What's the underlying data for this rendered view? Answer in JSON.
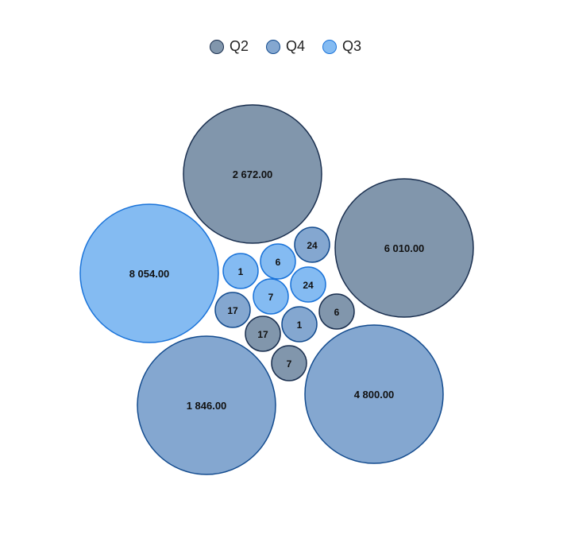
{
  "chart_data": {
    "type": "bubble",
    "title": "",
    "legend_position": "top-center",
    "series": [
      {
        "name": "Q2",
        "color": "#8196ac",
        "stroke": "#1a2f4f",
        "values": [
          2672.0,
          6010.0,
          6,
          7,
          17
        ]
      },
      {
        "name": "Q4",
        "color": "#84a7d0",
        "stroke": "#134b8e",
        "values": [
          1846.0,
          4800.0,
          24,
          1,
          17
        ]
      },
      {
        "name": "Q3",
        "color": "#84bbf2",
        "stroke": "#1a73d9",
        "values": [
          8054.0,
          1,
          6,
          7,
          24
        ]
      }
    ],
    "bubbles": [
      {
        "series": "Q2",
        "value": 2672.0,
        "label": "2 672.00"
      },
      {
        "series": "Q2",
        "value": 6010.0,
        "label": "6 010.00"
      },
      {
        "series": "Q3",
        "value": 8054.0,
        "label": "8 054.00"
      },
      {
        "series": "Q4",
        "value": 1846.0,
        "label": "1 846.00"
      },
      {
        "series": "Q4",
        "value": 4800.0,
        "label": "4 800.00"
      },
      {
        "series": "Q4",
        "value": 24,
        "label": "24"
      },
      {
        "series": "Q3",
        "value": 1,
        "label": "1"
      },
      {
        "series": "Q3",
        "value": 6,
        "label": "6"
      },
      {
        "series": "Q3",
        "value": 24,
        "label": "24"
      },
      {
        "series": "Q3",
        "value": 7,
        "label": "7"
      },
      {
        "series": "Q4",
        "value": 17,
        "label": "17"
      },
      {
        "series": "Q2",
        "value": 6,
        "label": "6"
      },
      {
        "series": "Q2",
        "value": 17,
        "label": "17"
      },
      {
        "series": "Q4",
        "value": 1,
        "label": "1"
      },
      {
        "series": "Q2",
        "value": 7,
        "label": "7"
      }
    ]
  }
}
